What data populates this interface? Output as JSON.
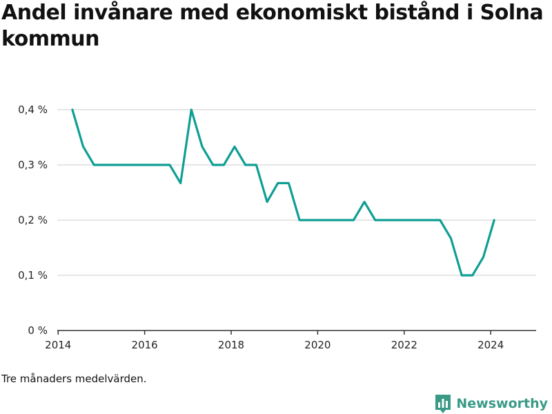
{
  "title": "Andel invånare med ekonomiskt bistånd i Solna kommun",
  "note": "Tre månaders medelvärden.",
  "brand": {
    "name": "Newsworthy",
    "icon": "bar-chart-logo-icon",
    "color": "#3a9a86"
  },
  "colors": {
    "line": "#0e9e94",
    "grid": "#dddddd",
    "axis": "#333333"
  },
  "chart_data": {
    "type": "line",
    "title": "Andel invånare med ekonomiskt bistånd i Solna kommun",
    "xlabel": "",
    "ylabel": "",
    "xlim": [
      2013.98,
      2025.05
    ],
    "ylim": [
      0,
      0.4
    ],
    "grid": true,
    "y_ticks": [
      {
        "value": 0,
        "label": "0 %"
      },
      {
        "value": 0.1,
        "label": "0,1 %"
      },
      {
        "value": 0.2,
        "label": "0,2 %"
      },
      {
        "value": 0.3,
        "label": "0,3 %"
      },
      {
        "value": 0.4,
        "label": "0,4 %"
      }
    ],
    "x_ticks": [
      {
        "value": 2014,
        "label": "2014"
      },
      {
        "value": 2016,
        "label": "2016"
      },
      {
        "value": 2018,
        "label": "2018"
      },
      {
        "value": 2020,
        "label": "2020"
      },
      {
        "value": 2022,
        "label": "2022"
      },
      {
        "value": 2024,
        "label": "2024"
      }
    ],
    "series": [
      {
        "x": [
          2014.33,
          2014.58,
          2014.83,
          2015.08,
          2015.33,
          2015.58,
          2015.83,
          2016.08,
          2016.33,
          2016.58,
          2016.83,
          2017.08,
          2017.33,
          2017.58,
          2017.83,
          2018.08,
          2018.33,
          2018.58,
          2018.83,
          2019.08,
          2019.33,
          2019.58,
          2019.83,
          2020.08,
          2020.33,
          2020.58,
          2020.83,
          2021.08,
          2021.33,
          2021.58,
          2021.83,
          2022.08,
          2022.33,
          2022.58,
          2022.83,
          2023.08,
          2023.33,
          2023.58,
          2023.83,
          2024.08
        ],
        "values": [
          0.4,
          0.333,
          0.3,
          0.3,
          0.3,
          0.3,
          0.3,
          0.3,
          0.3,
          0.3,
          0.267,
          0.4,
          0.333,
          0.3,
          0.3,
          0.333,
          0.3,
          0.3,
          0.233,
          0.267,
          0.267,
          0.2,
          0.2,
          0.2,
          0.2,
          0.2,
          0.2,
          0.233,
          0.2,
          0.2,
          0.2,
          0.2,
          0.2,
          0.2,
          0.2,
          0.167,
          0.1,
          0.1,
          0.133,
          0.2
        ]
      }
    ]
  }
}
